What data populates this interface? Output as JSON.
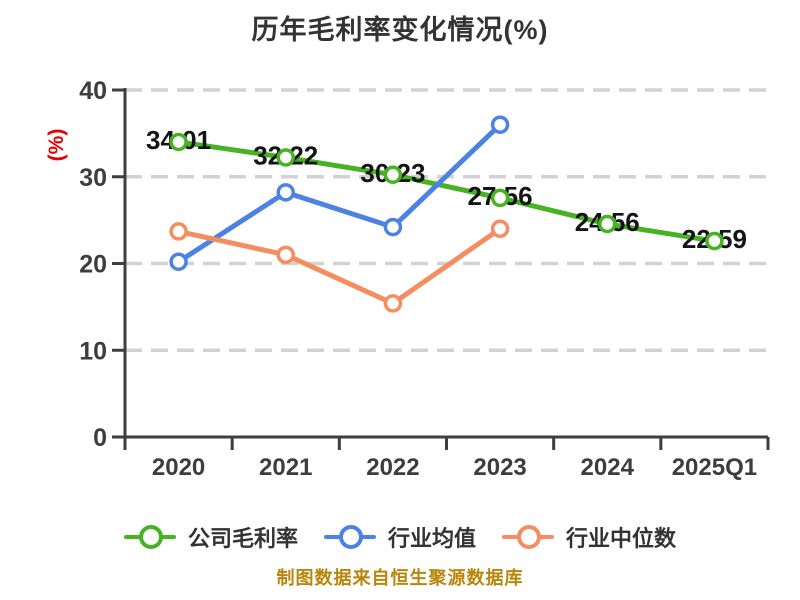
{
  "title": "历年毛利率变化情况(%)",
  "footer": "制图数据来自恒生聚源数据库",
  "colors": {
    "company": "#47b224",
    "industry_avg": "#4d82e5",
    "industry_median": "#f68d60",
    "axis": "#3e3e3e",
    "grid": "#d2d2d2",
    "y_axis_label": "#e60000",
    "tick_text": "#3d3d3d",
    "value_label": "#141414",
    "title_text": "#333333",
    "footer_text": "#b8860b"
  },
  "chart_data": {
    "type": "line",
    "title": "历年毛利率变化情况(%)",
    "categories": [
      "2020",
      "2021",
      "2022",
      "2023",
      "2024",
      "2025Q1"
    ],
    "series": [
      {
        "key": "company-gross-margin",
        "name": "公司毛利率",
        "color": "#47b224",
        "values": [
          34.01,
          32.22,
          30.23,
          27.56,
          24.56,
          22.59
        ],
        "point_labels": [
          "34.01",
          "32.22",
          "30.23",
          "27.56",
          "24.56",
          "22.59"
        ]
      },
      {
        "key": "industry-average",
        "name": "行业均值",
        "color": "#4d82e5",
        "values": [
          20.2,
          28.2,
          24.2,
          36.0
        ]
      },
      {
        "key": "industry-median",
        "name": "行业中位数",
        "color": "#f68d60",
        "values": [
          23.7,
          21.0,
          15.4,
          24.0
        ]
      }
    ],
    "xlabel": "",
    "ylabel": "(%)",
    "ylim": [
      0,
      40
    ],
    "yticks": [
      0,
      10,
      20,
      30,
      40
    ],
    "grid": "horizontal-dashed",
    "legend_position": "bottom"
  }
}
